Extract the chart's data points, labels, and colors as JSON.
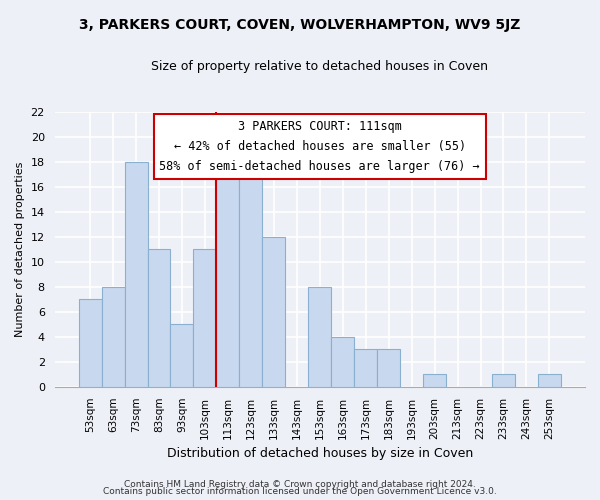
{
  "title": "3, PARKERS COURT, COVEN, WOLVERHAMPTON, WV9 5JZ",
  "subtitle": "Size of property relative to detached houses in Coven",
  "xlabel": "Distribution of detached houses by size in Coven",
  "ylabel": "Number of detached properties",
  "bar_labels": [
    "53sqm",
    "63sqm",
    "73sqm",
    "83sqm",
    "93sqm",
    "103sqm",
    "113sqm",
    "123sqm",
    "133sqm",
    "143sqm",
    "153sqm",
    "163sqm",
    "173sqm",
    "183sqm",
    "193sqm",
    "203sqm",
    "213sqm",
    "223sqm",
    "233sqm",
    "243sqm",
    "253sqm"
  ],
  "bar_values": [
    7,
    8,
    18,
    11,
    5,
    11,
    17,
    18,
    12,
    0,
    8,
    4,
    3,
    3,
    0,
    1,
    0,
    0,
    1,
    0,
    1
  ],
  "bar_color": "#c8d8ee",
  "bar_edge_color": "#8ab0d0",
  "vline_index": 6,
  "vline_color": "#cc0000",
  "annotation_title": "3 PARKERS COURT: 111sqm",
  "annotation_line1": "← 42% of detached houses are smaller (55)",
  "annotation_line2": "58% of semi-detached houses are larger (76) →",
  "ylim": [
    0,
    22
  ],
  "yticks": [
    0,
    2,
    4,
    6,
    8,
    10,
    12,
    14,
    16,
    18,
    20,
    22
  ],
  "footer1": "Contains HM Land Registry data © Crown copyright and database right 2024.",
  "footer2": "Contains public sector information licensed under the Open Government Licence v3.0.",
  "background_color": "#eef0f8",
  "plot_bg_color": "#eef0f8",
  "grid_color": "#ffffff",
  "title_fontsize": 10,
  "subtitle_fontsize": 9,
  "ylabel_fontsize": 8,
  "xlabel_fontsize": 9
}
